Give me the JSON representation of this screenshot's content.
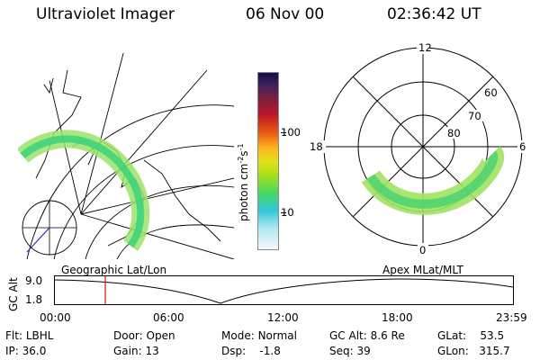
{
  "header": {
    "instrument": "Ultraviolet Imager",
    "date": "06 Nov 00",
    "time": "02:36:42 UT"
  },
  "colorbar": {
    "label": "photon cm",
    "label_exp1": "-2",
    "label_s": "s",
    "label_exp2": "-1",
    "ticks": [
      "100",
      "10"
    ]
  },
  "polar_plot": {
    "mlt_labels": {
      "top": "12",
      "left": "18",
      "right": "6",
      "bottom": "0"
    },
    "lat_labels": [
      "60",
      "70",
      "80"
    ]
  },
  "map_label": "Geographic Lat/Lon",
  "polar_label": "Apex MLat/MLT",
  "altitude_plot": {
    "axis_label": "GC Alt",
    "y_ticks": [
      "9.0",
      "1.8"
    ],
    "x_ticks": [
      "00:00",
      "06:00",
      "12:00",
      "18:00",
      "23:59"
    ]
  },
  "info_rows": [
    [
      {
        "label": "Flt:",
        "value": "LBHL"
      },
      {
        "label": "Door:",
        "value": "Open"
      },
      {
        "label": "Mode:",
        "value": "Normal"
      },
      {
        "label": "GC Alt:",
        "value": "8.6 Re"
      },
      {
        "label": "GLat:",
        "value": "53.5"
      }
    ],
    [
      {
        "label": "IP:",
        "value": "36.0"
      },
      {
        "label": "Gain:",
        "value": "13"
      },
      {
        "label": "Dsp:",
        "value": "-1.8"
      },
      {
        "label": "Seq:",
        "value": "39"
      },
      {
        "label": "GLon:",
        "value": "315.7"
      }
    ]
  ]
}
